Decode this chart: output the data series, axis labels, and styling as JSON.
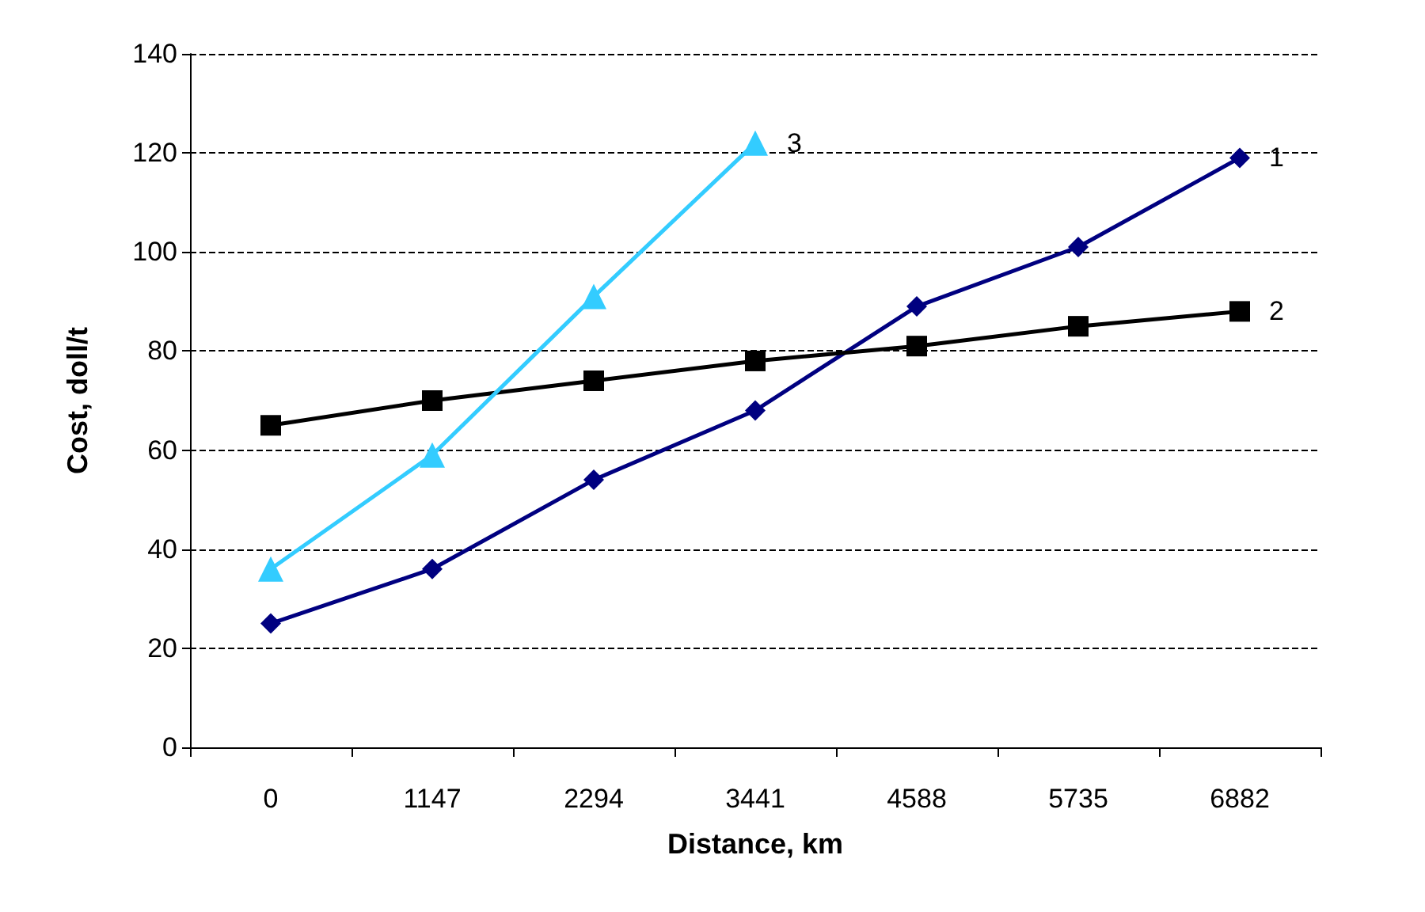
{
  "chart_data": {
    "type": "line",
    "xlabel": "Distance, km",
    "ylabel": "Cost, doll/t",
    "categories": [
      "0",
      "1147",
      "2294",
      "3441",
      "4588",
      "5735",
      "6882"
    ],
    "ylim": [
      0,
      140
    ],
    "yticks": [
      0,
      20,
      40,
      60,
      80,
      100,
      120,
      140
    ],
    "grid": "y",
    "series": [
      {
        "name": "1",
        "color": "#000080",
        "marker": "diamond",
        "values": [
          25,
          36,
          54,
          68,
          89,
          101,
          119
        ]
      },
      {
        "name": "2",
        "color": "#000000",
        "marker": "square",
        "values": [
          65,
          70,
          74,
          78,
          81,
          85,
          88
        ]
      },
      {
        "name": "3",
        "color": "#33ccff",
        "marker": "triangle",
        "values": [
          36,
          59,
          91,
          122,
          null,
          null,
          null
        ]
      }
    ]
  }
}
